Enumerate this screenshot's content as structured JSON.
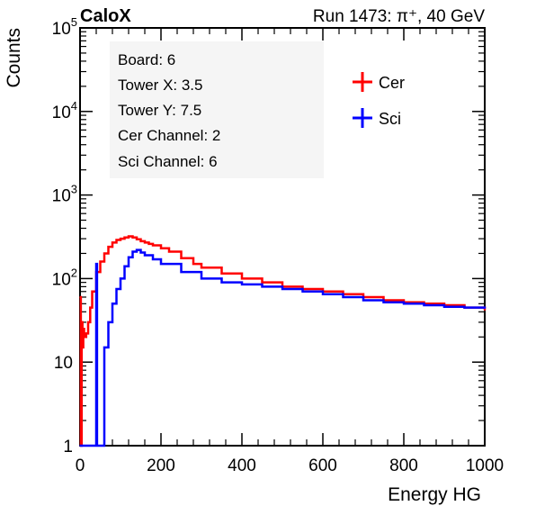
{
  "header": {
    "experiment": "CaloX",
    "run_info": "Run 1473:   π⁺, 40 GeV"
  },
  "info_box": {
    "lines": [
      "Board: 6",
      "Tower X: 3.5",
      "Tower Y: 7.5",
      "Cer Channel: 2",
      "Sci Channel: 6"
    ]
  },
  "chart_data": {
    "type": "line",
    "title": "",
    "xlabel": "Energy HG",
    "ylabel": "Counts",
    "xlim": [
      0,
      1000
    ],
    "ylim": [
      1,
      100000
    ],
    "y_scale": "log",
    "grid": false,
    "legend_position": "top-right",
    "x_ticks": [
      {
        "value": 0,
        "label": "0"
      },
      {
        "value": 200,
        "label": "200"
      },
      {
        "value": 400,
        "label": "400"
      },
      {
        "value": 600,
        "label": "600"
      },
      {
        "value": 800,
        "label": "800"
      },
      {
        "value": 1000,
        "label": "1000"
      }
    ],
    "y_ticks": [
      {
        "value": 1,
        "base": "1",
        "exp": ""
      },
      {
        "value": 10,
        "base": "10",
        "exp": ""
      },
      {
        "value": 100,
        "base": "10",
        "exp": "2"
      },
      {
        "value": 1000,
        "base": "10",
        "exp": "3"
      },
      {
        "value": 10000,
        "base": "10",
        "exp": "4"
      },
      {
        "value": 100000,
        "base": "10",
        "exp": "5"
      }
    ],
    "series": [
      {
        "name": "Cer",
        "color": "#ff0000",
        "x": [
          0,
          2,
          4,
          6,
          8,
          10,
          15,
          20,
          25,
          30,
          40,
          50,
          60,
          70,
          80,
          90,
          100,
          110,
          120,
          130,
          140,
          150,
          160,
          170,
          180,
          200,
          220,
          250,
          280,
          300,
          350,
          400,
          450,
          500,
          550,
          600,
          650,
          700,
          750,
          800,
          850,
          900,
          950,
          1000
        ],
        "y": [
          60,
          1,
          30,
          15,
          25,
          20,
          22,
          30,
          45,
          70,
          120,
          160,
          200,
          240,
          270,
          290,
          300,
          310,
          320,
          310,
          295,
          280,
          270,
          260,
          250,
          230,
          210,
          175,
          150,
          135,
          115,
          100,
          90,
          80,
          75,
          70,
          65,
          60,
          55,
          52,
          50,
          48,
          45,
          42
        ]
      },
      {
        "name": "Sci",
        "color": "#0000ff",
        "x": [
          0,
          8,
          10,
          15,
          20,
          25,
          30,
          35,
          38,
          40,
          42,
          45,
          50,
          60,
          70,
          80,
          90,
          100,
          110,
          120,
          130,
          140,
          150,
          160,
          180,
          200,
          250,
          300,
          350,
          400,
          450,
          500,
          550,
          600,
          650,
          700,
          750,
          800,
          850,
          900,
          950,
          1000
        ],
        "y": [
          1,
          1,
          1,
          1,
          1,
          1,
          1,
          1,
          1,
          150,
          1,
          1,
          1,
          15,
          30,
          50,
          75,
          100,
          140,
          180,
          210,
          220,
          205,
          190,
          170,
          150,
          120,
          100,
          90,
          85,
          80,
          75,
          70,
          65,
          60,
          55,
          52,
          50,
          48,
          46,
          45,
          44
        ]
      }
    ]
  }
}
